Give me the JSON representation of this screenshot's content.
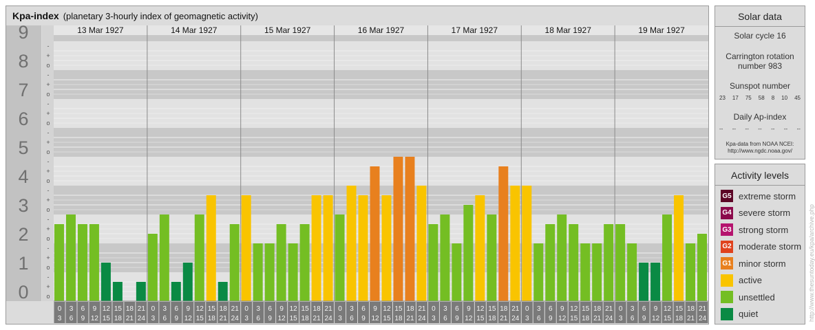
{
  "header": {
    "title": "Kpa-index",
    "subtitle": "(planetary 3-hourly index of geomagnetic activity)"
  },
  "chart_data": {
    "type": "bar",
    "title": "Kpa-index",
    "subtitle": "(planetary 3-hourly index of geomagnetic activity)",
    "ylim": [
      0,
      9
    ],
    "y_ticks": [
      "0",
      "1",
      "2",
      "3",
      "4",
      "5",
      "6",
      "7",
      "8",
      "9"
    ],
    "y_minor_marks": [
      "o",
      "+",
      "-"
    ],
    "days": [
      "13 Mar 1927",
      "14 Mar 1927",
      "15 Mar 1927",
      "16 Mar 1927",
      "17 Mar 1927",
      "18 Mar 1927",
      "19 Mar 1927"
    ],
    "intervals": [
      [
        "0",
        "3"
      ],
      [
        "3",
        "6"
      ],
      [
        "6",
        "9"
      ],
      [
        "9",
        "12"
      ],
      [
        "12",
        "15"
      ],
      [
        "15",
        "18"
      ],
      [
        "18",
        "21"
      ],
      [
        "21",
        "24"
      ]
    ],
    "values": [
      [
        2.667,
        3.0,
        2.667,
        2.667,
        1.333,
        0.667,
        0.0,
        0.667
      ],
      [
        2.333,
        3.0,
        0.667,
        1.333,
        3.0,
        3.667,
        0.667,
        2.667
      ],
      [
        3.667,
        2.0,
        2.0,
        2.667,
        2.0,
        2.667,
        3.667,
        3.667
      ],
      [
        3.0,
        4.0,
        3.667,
        4.667,
        3.667,
        5.0,
        5.0,
        4.0
      ],
      [
        2.667,
        3.0,
        2.0,
        3.333,
        3.667,
        3.0,
        4.667,
        4.0
      ],
      [
        4.0,
        2.0,
        2.667,
        3.0,
        2.667,
        2.0,
        2.0,
        2.667
      ],
      [
        2.667,
        2.0,
        1.333,
        1.333,
        3.0,
        3.667,
        2.0,
        2.333
      ]
    ],
    "grid": true,
    "legend_position": "right"
  },
  "solar_data": {
    "title": "Solar data",
    "solar_cycle": "Solar cycle 16",
    "carrington_line1": "Carrington rotation",
    "carrington_line2": "number 983",
    "sunspot_label": "Sunspot number",
    "sunspot_values": [
      "23",
      "17",
      "75",
      "58",
      "8",
      "10",
      "45"
    ],
    "ap_label": "Daily Ap-index",
    "ap_values": [
      "--",
      "--",
      "--",
      "--",
      "--",
      "--",
      "--"
    ],
    "credit_line1": "Kpa-data from NOAA NCEI:",
    "credit_line2": "http://www.ngdc.noaa.gov/"
  },
  "activity_levels": {
    "title": "Activity levels",
    "items": [
      {
        "code": "G5",
        "label": "extreme storm",
        "color": "#5c0626"
      },
      {
        "code": "G4",
        "label": "severe storm",
        "color": "#8b0a4b"
      },
      {
        "code": "G3",
        "label": "strong storm",
        "color": "#b5136e"
      },
      {
        "code": "G2",
        "label": "moderate storm",
        "color": "#e0421d"
      },
      {
        "code": "G1",
        "label": "minor storm",
        "color": "#e8801e"
      },
      {
        "code": "",
        "label": "active",
        "color": "#f9c400"
      },
      {
        "code": "",
        "label": "unsettled",
        "color": "#74be23"
      },
      {
        "code": "",
        "label": "quiet",
        "color": "#0a8a44"
      }
    ]
  },
  "watermark": "http://www.thesuntoday.eu/kpa/archive.php",
  "colors": {
    "quiet": "#0a8a44",
    "unsettled": "#74be23",
    "active": "#f9c400",
    "minor_storm": "#e8801e",
    "panel_bg": "#dcdcdc",
    "band_dark": "#c8c8c8",
    "band_light": "#e2e2e2",
    "axis_bg": "#c2c2c2",
    "interval_bg": "#7a7a7a"
  }
}
